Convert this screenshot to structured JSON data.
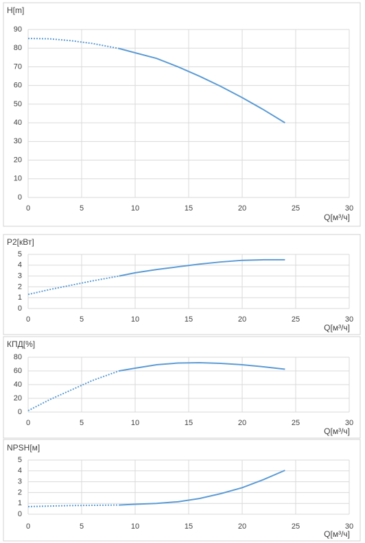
{
  "chart_data": [
    {
      "type": "line",
      "title": "H[m]",
      "x_label": "Q[м³/ч]",
      "x": [
        0,
        2,
        4,
        6,
        8.5,
        10,
        12,
        14,
        16,
        18,
        20,
        22,
        24
      ],
      "series": [
        {
          "color": "#5b9bd5",
          "dash": "dotted",
          "values": [
            85.2,
            85,
            84,
            82.5,
            79.8,
            null,
            null,
            null,
            null,
            null,
            null,
            null,
            null
          ]
        },
        {
          "color": "#5b9bd5",
          "dash": "solid",
          "values": [
            null,
            null,
            null,
            null,
            79.8,
            77.5,
            74.5,
            70,
            65,
            59.5,
            53.5,
            47,
            40
          ]
        }
      ],
      "xlim": [
        0,
        30
      ],
      "xticks": [
        0,
        5,
        10,
        15,
        20,
        25,
        30
      ],
      "ylim": [
        0,
        90
      ],
      "yticks": [
        0,
        10,
        20,
        30,
        40,
        50,
        60,
        70,
        80,
        90
      ],
      "grid": true
    },
    {
      "type": "line",
      "title": "P2[кВт]",
      "x_label": "Q[м³/ч]",
      "x": [
        0,
        2,
        4,
        6,
        8.5,
        10,
        12,
        14,
        16,
        18,
        20,
        22,
        24
      ],
      "series": [
        {
          "color": "#5b9bd5",
          "dash": "dotted",
          "values": [
            1.3,
            1.75,
            2.15,
            2.55,
            3.0,
            null,
            null,
            null,
            null,
            null,
            null,
            null,
            null
          ]
        },
        {
          "color": "#5b9bd5",
          "dash": "solid",
          "values": [
            null,
            null,
            null,
            null,
            3.0,
            3.3,
            3.6,
            3.85,
            4.1,
            4.3,
            4.45,
            4.5,
            4.5
          ]
        }
      ],
      "xlim": [
        0,
        30
      ],
      "xticks": [
        0,
        5,
        10,
        15,
        20,
        25,
        30
      ],
      "ylim": [
        0,
        5
      ],
      "yticks": [
        0,
        1,
        2,
        3,
        4,
        5
      ],
      "grid": true
    },
    {
      "type": "line",
      "title": "КПД[%]",
      "x_label": "Q[м³/ч]",
      "x": [
        0,
        2,
        4,
        6,
        8.5,
        10,
        12,
        14,
        16,
        18,
        20,
        22,
        24
      ],
      "series": [
        {
          "color": "#5b9bd5",
          "dash": "dotted",
          "values": [
            2,
            18,
            32,
            46,
            60,
            null,
            null,
            null,
            null,
            null,
            null,
            null,
            null
          ]
        },
        {
          "color": "#5b9bd5",
          "dash": "solid",
          "values": [
            null,
            null,
            null,
            null,
            60,
            64,
            69,
            71.5,
            72,
            71,
            69,
            66,
            62.5
          ]
        }
      ],
      "xlim": [
        0,
        30
      ],
      "xticks": [
        0,
        5,
        10,
        15,
        20,
        25,
        30
      ],
      "ylim": [
        0,
        80
      ],
      "yticks": [
        0,
        20,
        40,
        60,
        80
      ],
      "grid": true
    },
    {
      "type": "line",
      "title": "NPSH[м]",
      "x_label": "Q[м³/ч]",
      "x": [
        0,
        2,
        4,
        6,
        8.5,
        10,
        12,
        14,
        16,
        18,
        20,
        22,
        24
      ],
      "series": [
        {
          "color": "#5b9bd5",
          "dash": "dotted",
          "values": [
            0.7,
            0.75,
            0.8,
            0.82,
            0.85,
            null,
            null,
            null,
            null,
            null,
            null,
            null,
            null
          ]
        },
        {
          "color": "#5b9bd5",
          "dash": "solid",
          "values": [
            null,
            null,
            null,
            null,
            0.85,
            0.92,
            1.0,
            1.15,
            1.45,
            1.9,
            2.45,
            3.2,
            4.05
          ]
        }
      ],
      "xlim": [
        0,
        30
      ],
      "xticks": [
        0,
        5,
        10,
        15,
        20,
        25,
        30
      ],
      "ylim": [
        0,
        5
      ],
      "yticks": [
        0,
        1,
        2,
        3,
        4,
        5
      ],
      "grid": true
    }
  ]
}
